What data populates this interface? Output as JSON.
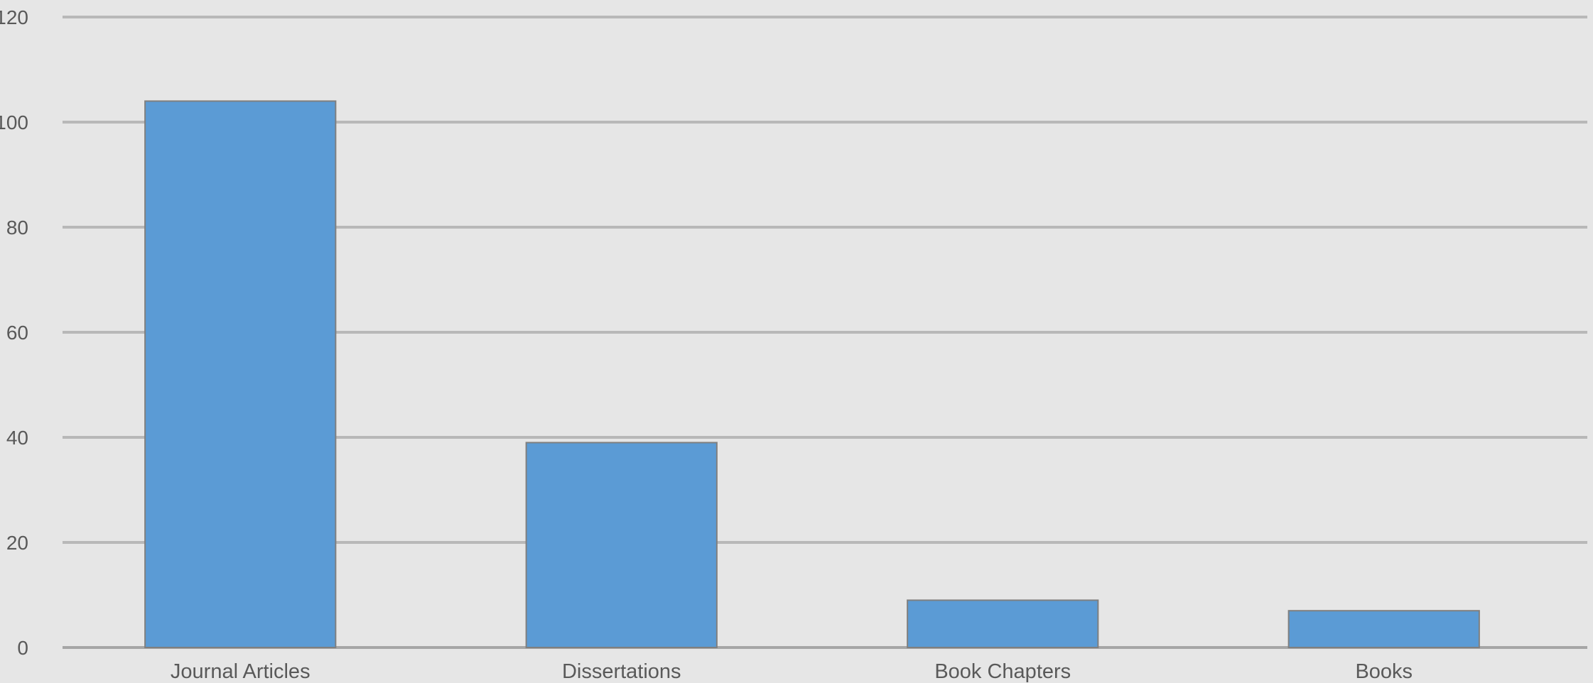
{
  "chart_data": {
    "type": "bar",
    "categories": [
      "Journal Articles",
      "Dissertations",
      "Book Chapters",
      "Books"
    ],
    "values": [
      104,
      39,
      9,
      7
    ],
    "ylim": [
      0,
      120
    ],
    "yticks": [
      0,
      20,
      40,
      60,
      80,
      100,
      120
    ],
    "grid": true,
    "legend": "none",
    "colors": {
      "bar": "#5b9bd5",
      "background": "#e6e6e6",
      "grid": "#b8b8b8",
      "text": "#595959"
    }
  }
}
